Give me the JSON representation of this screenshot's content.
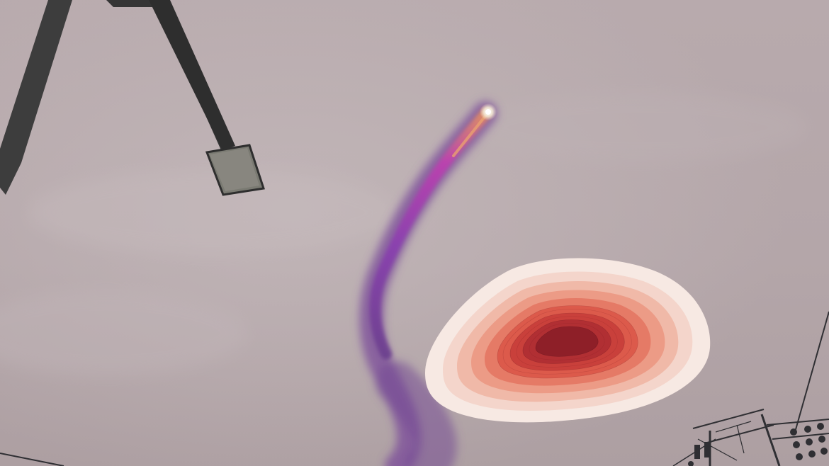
{
  "scene": {
    "description_tag": "",
    "colors": {
      "sky_light": "#c2b6b9",
      "sky_mid": "#b5a7aa",
      "sky_dark": "#a99a9e",
      "smoke_light": "#a050b8",
      "smoke_dark": "#6a3a8a",
      "flame": "#f0e8d0",
      "pole": "#3a3a3a",
      "lamp": "#6d6d68",
      "heat_low": "#f7e9e3",
      "heat_high": "#8e1f28"
    },
    "icons": {
      "lamp_post": "street-lamp-icon",
      "rocket": "rocket-trail-icon",
      "power_lines": "power-line-icon",
      "heatmap": "density-heatmap-icon"
    }
  }
}
